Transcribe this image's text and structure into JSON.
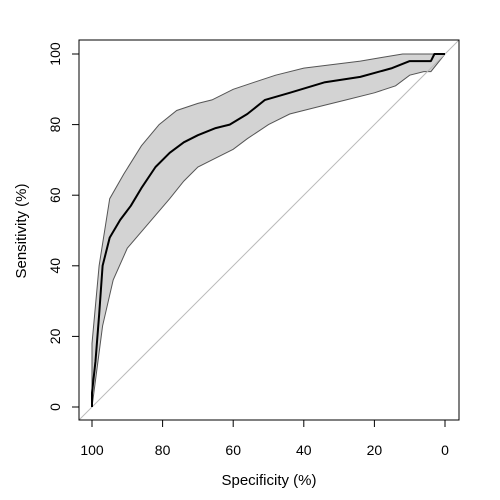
{
  "chart_data": {
    "type": "line",
    "title": "",
    "xlabel": "Specificity (%)",
    "ylabel": "Sensitivity (%)",
    "xlim": [
      100,
      0
    ],
    "ylim": [
      0,
      100
    ],
    "x_reversed": true,
    "x_ticks": [
      100,
      80,
      60,
      40,
      20,
      0
    ],
    "y_ticks": [
      0,
      20,
      40,
      60,
      80,
      100
    ],
    "x_tick_labels": [
      "100",
      "80",
      "60",
      "40",
      "20",
      "0"
    ],
    "y_tick_labels": [
      "0",
      "20",
      "40",
      "60",
      "80",
      "100"
    ],
    "grid": false,
    "legend": "none",
    "series": [
      {
        "role": "curve",
        "color": "#000000",
        "points": [
          [
            100,
            0
          ],
          [
            100,
            4
          ],
          [
            99,
            13
          ],
          [
            98,
            26
          ],
          [
            97,
            40
          ],
          [
            95,
            48
          ],
          [
            92,
            53
          ],
          [
            89,
            57
          ],
          [
            86,
            62
          ],
          [
            82,
            68
          ],
          [
            78,
            72
          ],
          [
            74,
            75
          ],
          [
            70,
            77
          ],
          [
            65,
            79
          ],
          [
            61,
            80
          ],
          [
            56,
            83
          ],
          [
            51,
            87
          ],
          [
            44,
            89
          ],
          [
            34,
            92
          ],
          [
            24,
            93.5
          ],
          [
            15,
            96
          ],
          [
            10,
            98
          ],
          [
            4,
            98
          ],
          [
            3,
            100
          ],
          [
            0,
            100
          ]
        ]
      }
    ],
    "confidence_band": {
      "fill": "#d3d3d3",
      "stroke": "#555555",
      "upper": [
        [
          100,
          0
        ],
        [
          100,
          18
        ],
        [
          98,
          40
        ],
        [
          95,
          59
        ],
        [
          91,
          66
        ],
        [
          86,
          74
        ],
        [
          81,
          80
        ],
        [
          76,
          84
        ],
        [
          70,
          86
        ],
        [
          66,
          87
        ],
        [
          60,
          90
        ],
        [
          54,
          92
        ],
        [
          48,
          94
        ],
        [
          40,
          96
        ],
        [
          32,
          97
        ],
        [
          24,
          98
        ],
        [
          18,
          99
        ],
        [
          12,
          100
        ],
        [
          4,
          100
        ],
        [
          0,
          100
        ]
      ],
      "lower": [
        [
          100,
          0
        ],
        [
          97,
          23
        ],
        [
          94,
          36
        ],
        [
          90,
          45
        ],
        [
          84,
          52
        ],
        [
          78,
          59
        ],
        [
          74,
          64
        ],
        [
          70,
          68
        ],
        [
          66,
          70
        ],
        [
          60,
          73
        ],
        [
          56,
          76
        ],
        [
          50,
          80
        ],
        [
          44,
          83
        ],
        [
          36,
          85
        ],
        [
          28,
          87
        ],
        [
          20,
          89
        ],
        [
          14,
          91
        ],
        [
          10,
          94
        ],
        [
          6,
          95
        ],
        [
          4,
          95
        ],
        [
          0,
          100
        ]
      ]
    },
    "reference_line": {
      "color": "#bbbbbb",
      "from": [
        100,
        0
      ],
      "to": [
        0,
        100
      ]
    }
  }
}
